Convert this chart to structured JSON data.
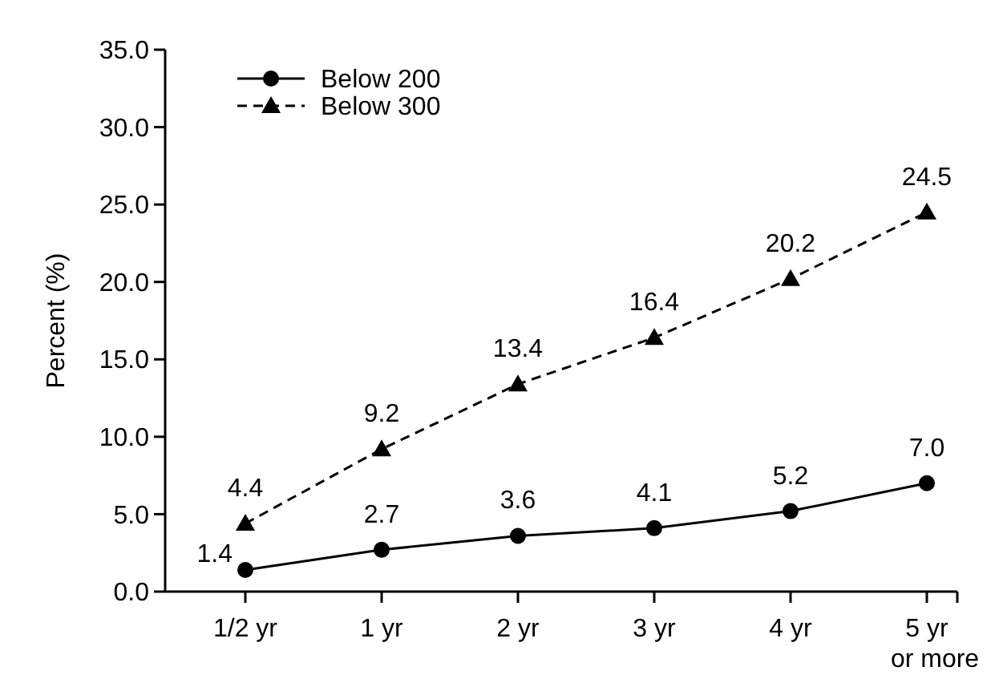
{
  "chart_data": {
    "type": "line",
    "ylabel": "Percent (%)",
    "categories": [
      "1/2 yr",
      "1 yr",
      "2 yr",
      "3 yr",
      "4 yr",
      "5 yr\nor more"
    ],
    "series": [
      {
        "name": "Below 200",
        "color": "#000000",
        "marker": "circle",
        "line_style": "solid",
        "values": [
          1.4,
          2.7,
          3.6,
          4.1,
          5.2,
          7.0
        ],
        "value_labels": [
          "1.4",
          "2.7",
          "3.6",
          "4.1",
          "5.2",
          "7.0"
        ]
      },
      {
        "name": "Below 300",
        "color": "#000000",
        "marker": "triangle",
        "line_style": "dashed",
        "values": [
          4.4,
          9.2,
          13.4,
          16.4,
          20.2,
          24.5
        ],
        "value_labels": [
          "4.4",
          "9.2",
          "13.4",
          "16.4",
          "20.2",
          "24.5"
        ]
      }
    ],
    "ylim": [
      0,
      35
    ],
    "yticks": [
      {
        "value": 0,
        "label": "0.0"
      },
      {
        "value": 5,
        "label": "5.0"
      },
      {
        "value": 10,
        "label": "10.0"
      },
      {
        "value": 15,
        "label": "15.0"
      },
      {
        "value": 20,
        "label": "20.0"
      },
      {
        "value": 25,
        "label": "25.0"
      },
      {
        "value": 30,
        "label": "30.0"
      },
      {
        "value": 35,
        "label": "35.0"
      }
    ],
    "grid": false,
    "legend": "top left"
  }
}
